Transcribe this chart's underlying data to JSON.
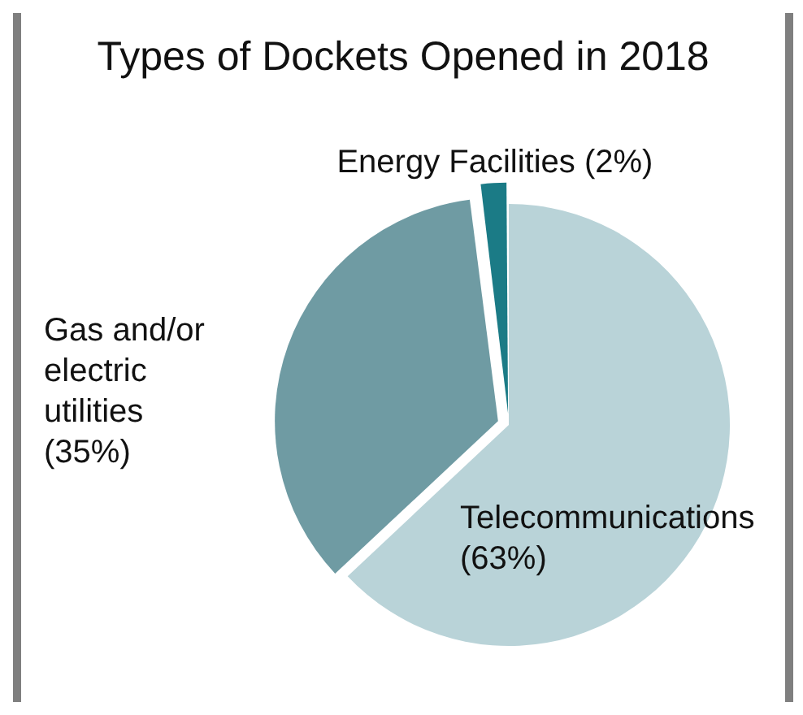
{
  "chart_data": {
    "type": "pie",
    "title": "Types of Dockets Opened in 2018",
    "categories": [
      "Telecommunications",
      "Gas and/or electric utilities",
      "Energy Facilities"
    ],
    "values": [
      63,
      35,
      2
    ],
    "value_labels": [
      "(63%)",
      "(35%)",
      "(2%)"
    ],
    "colors": [
      "#b9d3d8",
      "#6f9ba3",
      "#1b7b86"
    ],
    "legend": false
  }
}
